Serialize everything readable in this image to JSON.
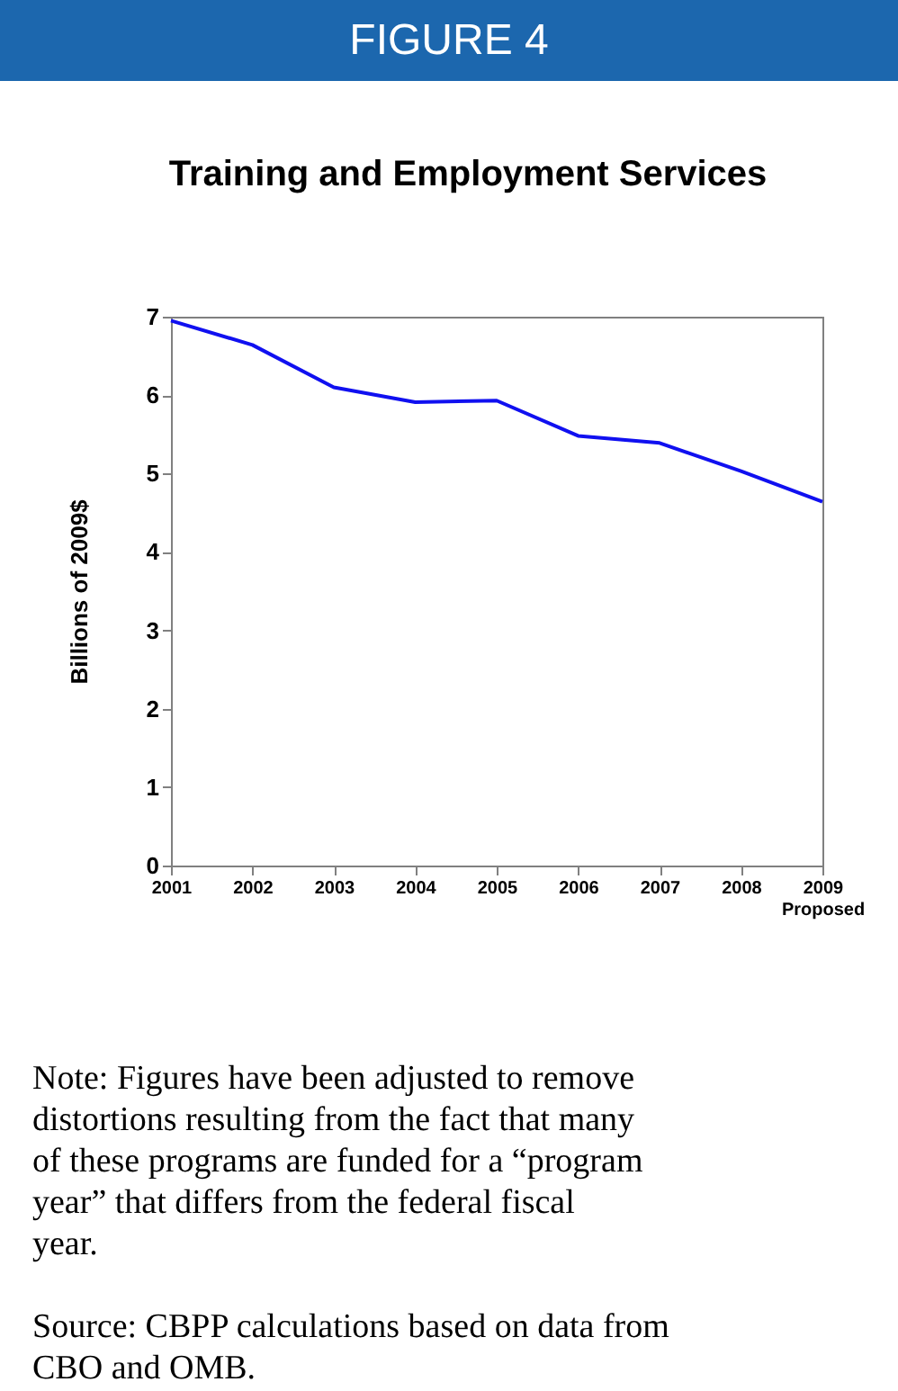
{
  "chart_data": {
    "type": "line",
    "title": "FIGURE 4",
    "subtitle": "Training and Employment Services",
    "ylabel": "Billions of 2009$",
    "categories": [
      "2001",
      "2002",
      "2003",
      "2004",
      "2005",
      "2006",
      "2007",
      "2008",
      "2009\nProposed"
    ],
    "series": [
      {
        "color": "#1010f0",
        "values": [
          6.95,
          6.64,
          6.1,
          5.91,
          5.93,
          5.48,
          5.39,
          5.03,
          4.64
        ]
      }
    ],
    "ylim": [
      0,
      7
    ],
    "yticks": [
      0,
      1,
      2,
      3,
      4,
      5,
      6,
      7
    ],
    "grid": false,
    "marker": "none",
    "line_style": "solid",
    "annotations": [
      "Note: Figures have been adjusted to remove distortions resulting from the fact that many of these programs are funded for a “program year” that differs from the federal fiscal year.",
      "Source: CBPP calculations based on data from CBO and OMB."
    ]
  }
}
